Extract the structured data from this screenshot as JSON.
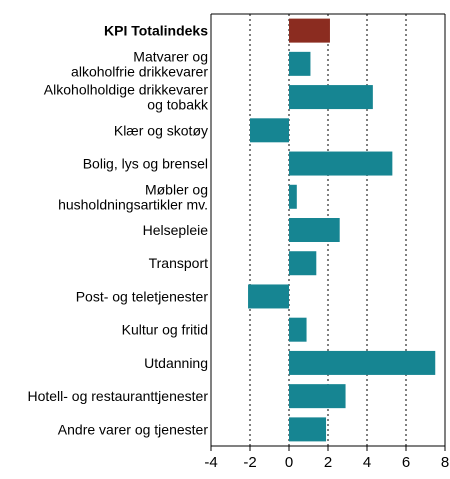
{
  "chart_data": {
    "type": "bar",
    "orientation": "horizontal",
    "categories": [
      [
        "KPI Totalindeks"
      ],
      [
        "Matvarer og",
        "alkoholfrie drikkevarer"
      ],
      [
        "Alkoholholdige drikkevarer",
        "og tobakk"
      ],
      [
        "Klær og skotøy"
      ],
      [
        "Bolig, lys og brensel"
      ],
      [
        "Møbler og",
        "husholdningsartikler mv."
      ],
      [
        "Helsepleie"
      ],
      [
        "Transport"
      ],
      [
        "Post- og teletjenester"
      ],
      [
        "Kultur og fritid"
      ],
      [
        "Utdanning"
      ],
      [
        "Hotell- og restauranttjenester"
      ],
      [
        "Andre varer og tjenester"
      ]
    ],
    "values": [
      2.1,
      1.1,
      4.3,
      -2.0,
      5.3,
      0.4,
      2.6,
      1.4,
      -2.1,
      0.9,
      7.5,
      2.9,
      1.9
    ],
    "highlight_index": 0,
    "xlim": [
      -4,
      8
    ],
    "xticks": [
      "-4",
      "-2",
      "0",
      "2",
      "4",
      "6",
      "8"
    ],
    "grid": "vertical-dotted",
    "colors": {
      "bar": "#168592",
      "highlight": "#8b2c20",
      "grid": "#000000"
    }
  }
}
